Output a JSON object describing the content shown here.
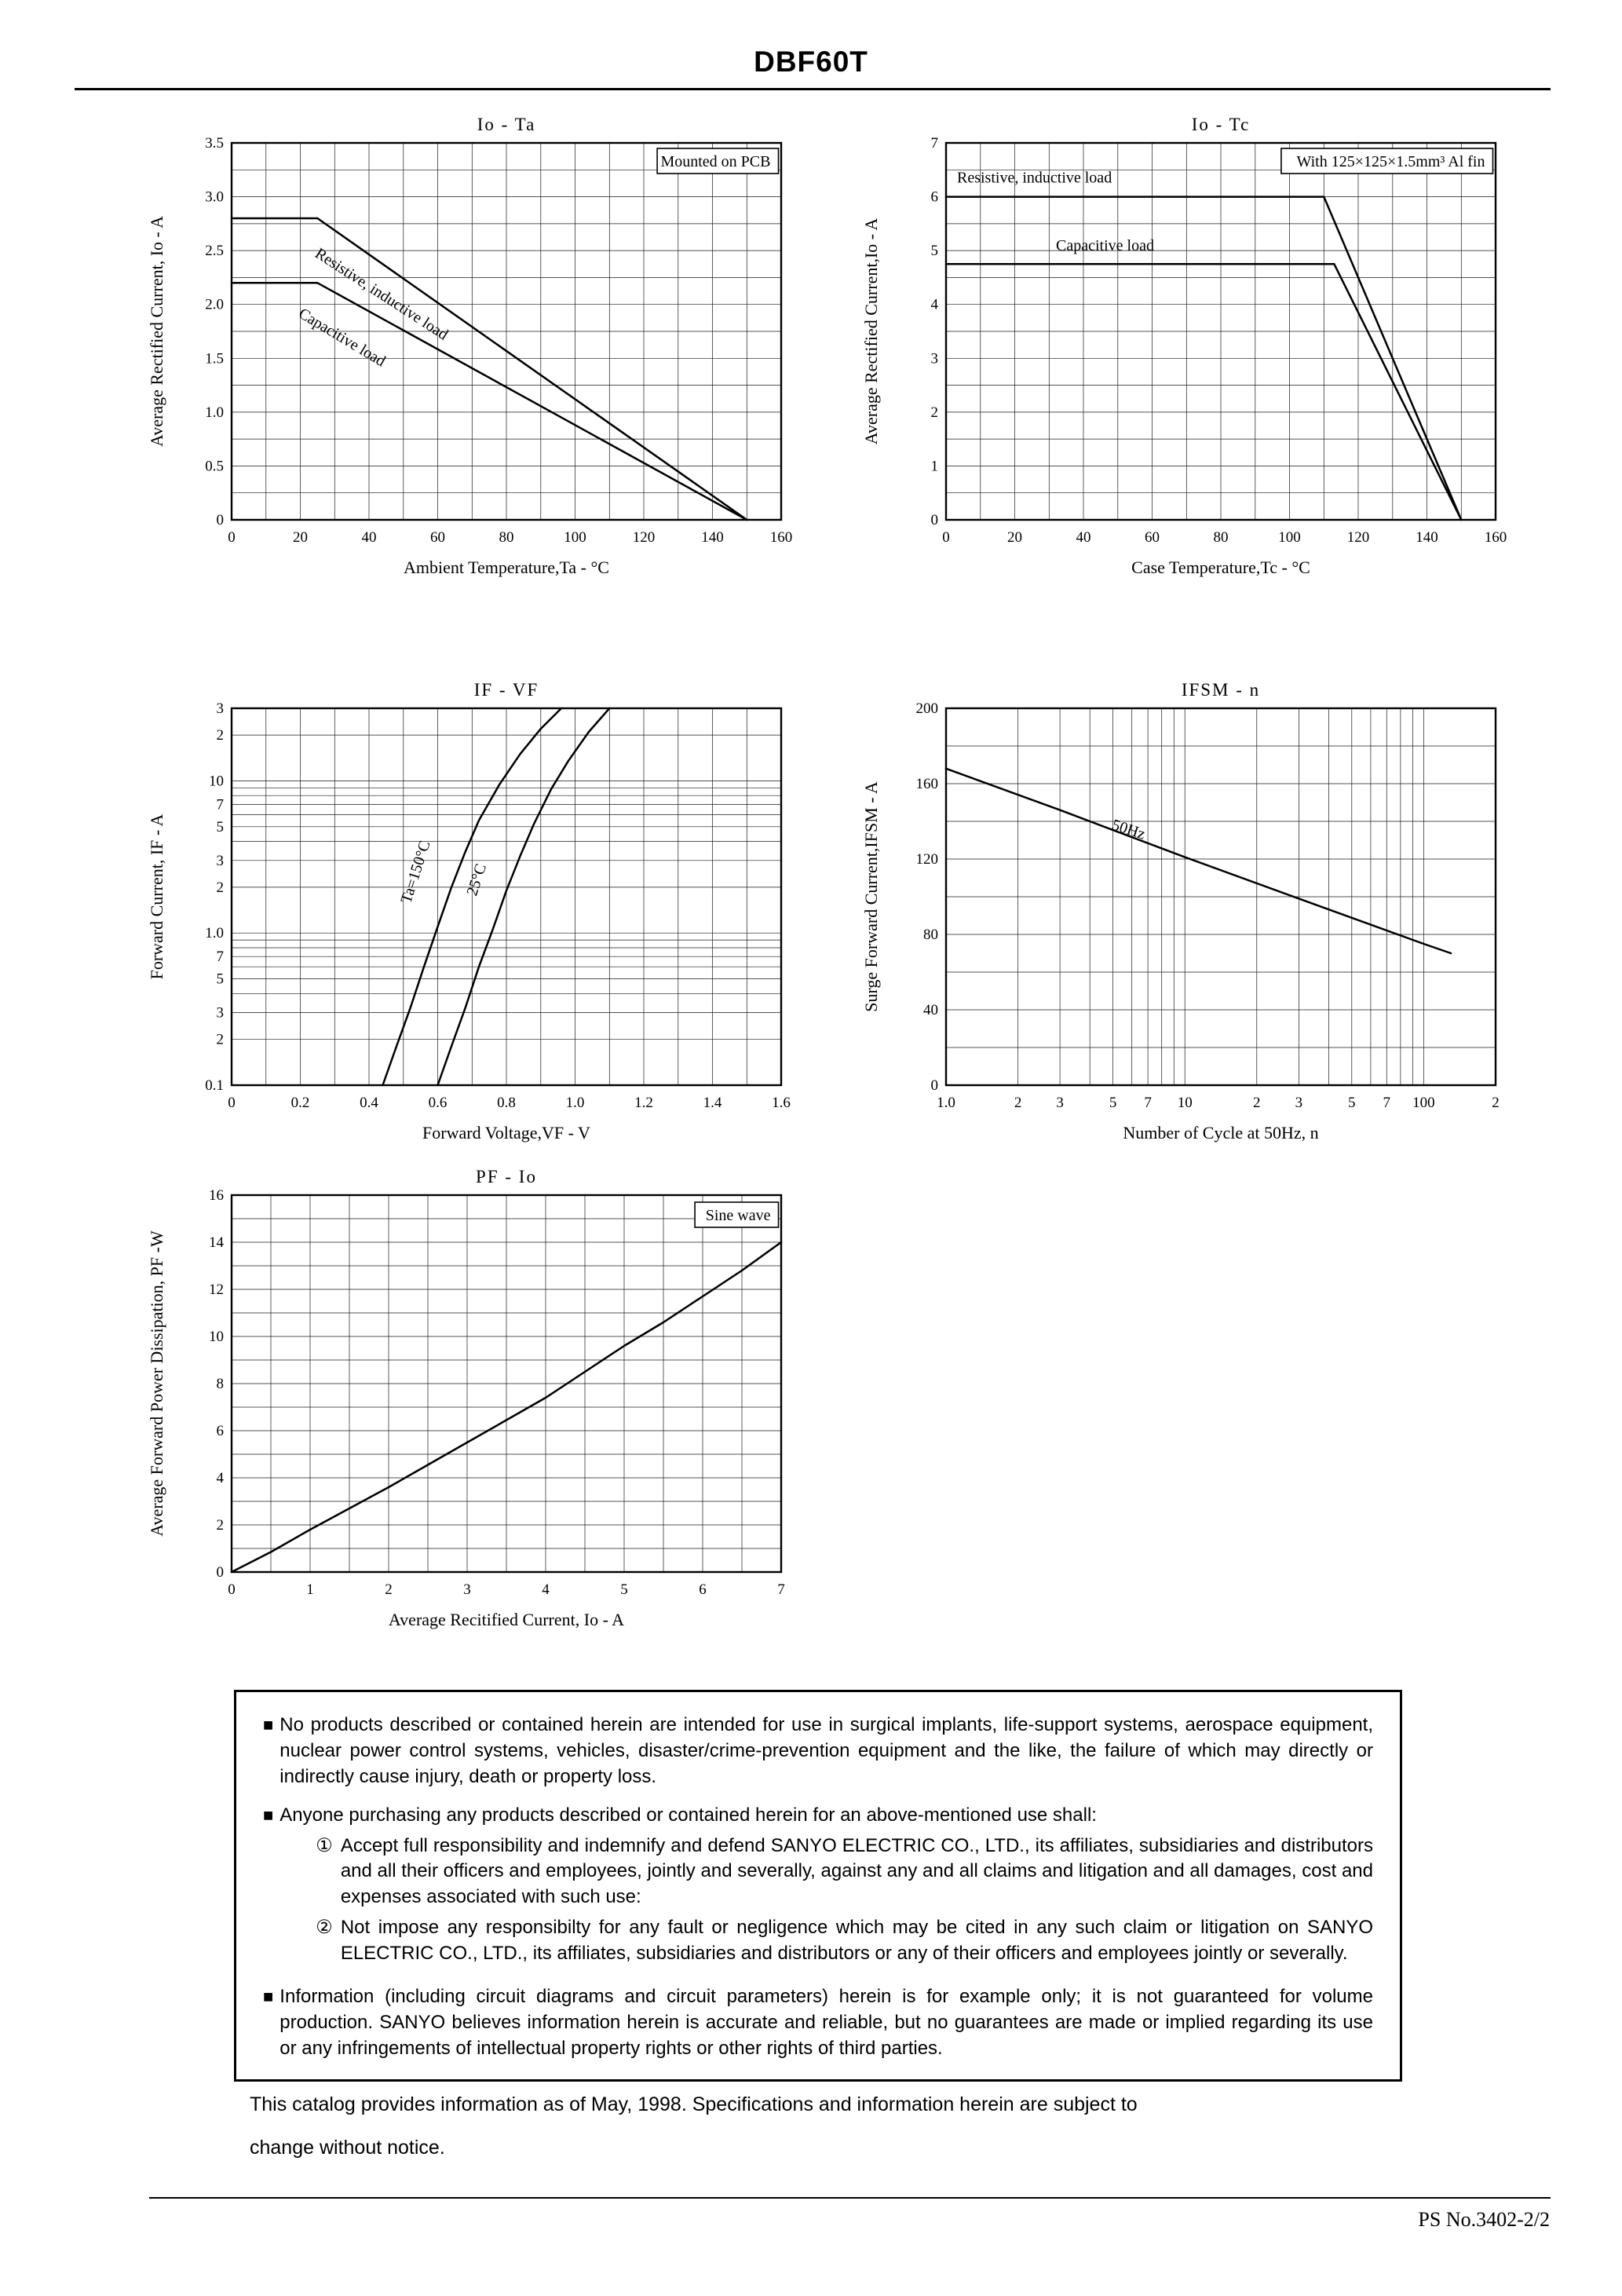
{
  "page": {
    "title": "DBF60T",
    "footer_line1": "This catalog provides information as of May, 1998. Specifications and information herein are subject to",
    "footer_line2": "change without notice.",
    "doc_number": "PS  No.3402-2/2"
  },
  "disclaimer": {
    "items": [
      {
        "bullet": "■",
        "text": "No products described or contained herein are intended for use in surgical implants, life-support systems, aerospace equipment, nuclear power control systems, vehicles, disaster/crime-prevention equipment and the like, the failure of which may directly or indirectly cause injury, death or property loss."
      },
      {
        "bullet": "■",
        "text": "Anyone purchasing any products described or contained herein for an above-mentioned use shall:",
        "subitems": [
          {
            "marker": "①",
            "text": "Accept full responsibility and indemnify and defend SANYO ELECTRIC CO., LTD., its affiliates, subsidiaries and distributors and all their officers and employees, jointly and severally, against any and all claims and litigation and all damages, cost and expenses associated with such use:"
          },
          {
            "marker": "②",
            "text": "Not impose any responsibilty for any fault or negligence which may be cited in any such claim or litigation on SANYO ELECTRIC CO., LTD., its affiliates, subsidiaries and distributors or any of their officers and employees jointly or severally."
          }
        ]
      },
      {
        "bullet": "■",
        "text": "Information (including circuit diagrams and circuit parameters) herein is for example only; it is not guaranteed for volume production. SANYO believes information herein is accurate and reliable, but no guarantees are made or implied regarding its use or any infringements of intellectual property rights or other rights of third parties."
      }
    ]
  },
  "chart_data": [
    {
      "id": "io-ta",
      "type": "line",
      "title": "Io - Ta",
      "xlabel": "Ambient Temperature,Ta  -  °C",
      "ylabel": "Average Rectified Current, Io  -  A",
      "x": {
        "scale": "linear",
        "min": 0,
        "max": 160,
        "step": 10,
        "ticks": [
          [
            0,
            "0"
          ],
          [
            20,
            "20"
          ],
          [
            40,
            "40"
          ],
          [
            60,
            "60"
          ],
          [
            80,
            "80"
          ],
          [
            100,
            "100"
          ],
          [
            120,
            "120"
          ],
          [
            140,
            "140"
          ],
          [
            160,
            "160"
          ]
        ]
      },
      "y": {
        "scale": "linear",
        "min": 0,
        "max": 3.5,
        "step": 0.25,
        "ticks": [
          [
            0,
            "0"
          ],
          [
            0.5,
            "0.5"
          ],
          [
            1,
            "1.0"
          ],
          [
            1.5,
            "1.5"
          ],
          [
            2,
            "2.0"
          ],
          [
            2.5,
            "2.5"
          ],
          [
            3,
            "3.0"
          ],
          [
            3.5,
            "3.5"
          ]
        ]
      },
      "series": [
        {
          "name": "Resistive, inductive load",
          "points": [
            [
              0,
              2.8
            ],
            [
              25,
              2.8
            ],
            [
              150,
              0
            ]
          ]
        },
        {
          "name": "Capacitive load",
          "points": [
            [
              0,
              2.2
            ],
            [
              25,
              2.2
            ],
            [
              150,
              0
            ]
          ]
        }
      ],
      "annotations": [
        {
          "text": "Mounted on PCB",
          "fx": 0.995,
          "fy": 0.048,
          "anchor": "end",
          "boxed": true
        },
        {
          "text": "Resistive, inductive load",
          "fx": 0.15,
          "fy": 0.3,
          "rotate": 33
        },
        {
          "text": "Capacitive load",
          "fx": 0.12,
          "fy": 0.46,
          "rotate": 31
        }
      ]
    },
    {
      "id": "io-tc",
      "type": "line",
      "title": "Io - Tc",
      "xlabel": "Case Temperature,Tc  -  °C",
      "ylabel": "Average Rectified Current,Io  -  A",
      "x": {
        "scale": "linear",
        "min": 0,
        "max": 160,
        "step": 10,
        "ticks": [
          [
            0,
            "0"
          ],
          [
            20,
            "20"
          ],
          [
            40,
            "40"
          ],
          [
            60,
            "60"
          ],
          [
            80,
            "80"
          ],
          [
            100,
            "100"
          ],
          [
            120,
            "120"
          ],
          [
            140,
            "140"
          ],
          [
            160,
            "160"
          ]
        ]
      },
      "y": {
        "scale": "linear",
        "min": 0,
        "max": 7,
        "step": 0.5,
        "ticks": [
          [
            0,
            "0"
          ],
          [
            1,
            "1"
          ],
          [
            2,
            "2"
          ],
          [
            3,
            "3"
          ],
          [
            4,
            "4"
          ],
          [
            5,
            "5"
          ],
          [
            6,
            "6"
          ],
          [
            7,
            "7"
          ]
        ]
      },
      "series": [
        {
          "name": "Resistive, inductive load",
          "points": [
            [
              0,
              6
            ],
            [
              110,
              6
            ],
            [
              150,
              0
            ]
          ]
        },
        {
          "name": "Capacitive load",
          "points": [
            [
              0,
              4.75
            ],
            [
              113,
              4.75
            ],
            [
              150,
              0
            ]
          ]
        }
      ],
      "annotations": [
        {
          "text": "With 125×125×1.5mm³ Al fin",
          "fx": 0.995,
          "fy": 0.048,
          "anchor": "end",
          "boxed": true
        },
        {
          "text": "Resistive, inductive load",
          "fx": 0.02,
          "fy": 0.105
        },
        {
          "text": "Capacitive load",
          "fx": 0.2,
          "fy": 0.285
        }
      ]
    },
    {
      "id": "if-vf",
      "type": "line",
      "title": "IF - VF",
      "xlabel": "Forward Voltage,VF  -  V",
      "ylabel": "Forward Current, IF  -  A",
      "x": {
        "scale": "linear",
        "min": 0,
        "max": 1.6,
        "step": 0.1,
        "ticks": [
          [
            0,
            "0"
          ],
          [
            0.2,
            "0.2"
          ],
          [
            0.4,
            "0.4"
          ],
          [
            0.6,
            "0.6"
          ],
          [
            0.8,
            "0.8"
          ],
          [
            1.0,
            "1.0"
          ],
          [
            1.2,
            "1.2"
          ],
          [
            1.4,
            "1.4"
          ],
          [
            1.6,
            "1.6"
          ]
        ]
      },
      "y": {
        "scale": "log",
        "min": 0.1,
        "max": 30,
        "grid": [
          0.1,
          0.2,
          0.3,
          0.4,
          0.5,
          0.6,
          0.7,
          0.8,
          0.9,
          1,
          2,
          3,
          4,
          5,
          6,
          7,
          8,
          9,
          10,
          20,
          30
        ],
        "ticks": [
          [
            0.1,
            "0.1"
          ],
          [
            0.2,
            "2"
          ],
          [
            0.3,
            "3"
          ],
          [
            0.5,
            "5"
          ],
          [
            0.7,
            "7"
          ],
          [
            1,
            "1.0"
          ],
          [
            2,
            "2"
          ],
          [
            3,
            "3"
          ],
          [
            5,
            "5"
          ],
          [
            7,
            "7"
          ],
          [
            10,
            "10"
          ],
          [
            20,
            "2"
          ],
          [
            30,
            "3"
          ]
        ]
      },
      "series": [
        {
          "name": "Ta=150°C",
          "points": [
            [
              0.44,
              0.1
            ],
            [
              0.48,
              0.18
            ],
            [
              0.52,
              0.32
            ],
            [
              0.56,
              0.6
            ],
            [
              0.6,
              1.1
            ],
            [
              0.64,
              2.0
            ],
            [
              0.68,
              3.4
            ],
            [
              0.72,
              5.5
            ],
            [
              0.78,
              9.5
            ],
            [
              0.84,
              15
            ],
            [
              0.9,
              22
            ],
            [
              0.96,
              30
            ]
          ]
        },
        {
          "name": "25°C",
          "points": [
            [
              0.6,
              0.1
            ],
            [
              0.64,
              0.18
            ],
            [
              0.68,
              0.32
            ],
            [
              0.72,
              0.6
            ],
            [
              0.76,
              1.05
            ],
            [
              0.8,
              1.9
            ],
            [
              0.84,
              3.2
            ],
            [
              0.88,
              5.2
            ],
            [
              0.93,
              8.8
            ],
            [
              0.98,
              13.5
            ],
            [
              1.04,
              21
            ],
            [
              1.1,
              30
            ]
          ]
        }
      ],
      "annotations": [
        {
          "text": "Ta=150°C",
          "fx": 0.325,
          "fy": 0.52,
          "rotate": -72
        },
        {
          "text": "25°C",
          "fx": 0.445,
          "fy": 0.5,
          "rotate": -72
        }
      ]
    },
    {
      "id": "ifsm-n",
      "type": "line",
      "title": "IFSM - n",
      "xlabel": "Number of Cycle at 50Hz, n",
      "ylabel": "Surge Forward Current,IFSM  -  A",
      "x": {
        "scale": "log",
        "min": 1,
        "max": 200,
        "grid": [
          1,
          2,
          3,
          4,
          5,
          6,
          7,
          8,
          9,
          10,
          20,
          30,
          40,
          50,
          60,
          70,
          80,
          90,
          100,
          200
        ],
        "ticks": [
          [
            1,
            "1.0"
          ],
          [
            2,
            "2"
          ],
          [
            3,
            "3"
          ],
          [
            5,
            "5"
          ],
          [
            7,
            "7"
          ],
          [
            10,
            "10"
          ],
          [
            20,
            "2"
          ],
          [
            30,
            "3"
          ],
          [
            50,
            "5"
          ],
          [
            70,
            "7"
          ],
          [
            100,
            "100"
          ],
          [
            200,
            "2"
          ]
        ]
      },
      "y": {
        "scale": "linear",
        "min": 0,
        "max": 200,
        "step": 20,
        "ticks": [
          [
            0,
            "0"
          ],
          [
            40,
            "40"
          ],
          [
            80,
            "80"
          ],
          [
            120,
            "120"
          ],
          [
            160,
            "160"
          ],
          [
            200,
            "200"
          ]
        ]
      },
      "series": [
        {
          "name": "50Hz",
          "points": [
            [
              1,
              168
            ],
            [
              3,
              146
            ],
            [
              10,
              121
            ],
            [
              30,
              99
            ],
            [
              100,
              75
            ],
            [
              130,
              70
            ]
          ]
        }
      ],
      "annotations": [
        {
          "text": "50Hz",
          "fx": 0.3,
          "fy": 0.32,
          "rotate": 18
        }
      ]
    },
    {
      "id": "pf-io",
      "type": "line",
      "title": "PF - Io",
      "xlabel": "Average Recitified Current, Io  -  A",
      "ylabel": "Average Forward Power Dissipation, PF  -W",
      "x": {
        "scale": "linear",
        "min": 0,
        "max": 7,
        "step": 0.5,
        "ticks": [
          [
            0,
            "0"
          ],
          [
            1,
            "1"
          ],
          [
            2,
            "2"
          ],
          [
            3,
            "3"
          ],
          [
            4,
            "4"
          ],
          [
            5,
            "5"
          ],
          [
            6,
            "6"
          ],
          [
            7,
            "7"
          ]
        ]
      },
      "y": {
        "scale": "linear",
        "min": 0,
        "max": 16,
        "step": 1,
        "ticks": [
          [
            0,
            "0"
          ],
          [
            2,
            "2"
          ],
          [
            4,
            "4"
          ],
          [
            6,
            "6"
          ],
          [
            8,
            "8"
          ],
          [
            10,
            "10"
          ],
          [
            12,
            "12"
          ],
          [
            14,
            "14"
          ],
          [
            16,
            "16"
          ]
        ]
      },
      "series": [
        {
          "name": "Sine wave",
          "points": [
            [
              0,
              0
            ],
            [
              0.5,
              0.85
            ],
            [
              1,
              1.8
            ],
            [
              1.5,
              2.7
            ],
            [
              2,
              3.6
            ],
            [
              2.5,
              4.55
            ],
            [
              3,
              5.5
            ],
            [
              3.5,
              6.45
            ],
            [
              4,
              7.4
            ],
            [
              4.5,
              8.5
            ],
            [
              5,
              9.6
            ],
            [
              5.5,
              10.6
            ],
            [
              6,
              11.7
            ],
            [
              6.5,
              12.8
            ],
            [
              7,
              14
            ]
          ]
        }
      ],
      "annotations": [
        {
          "text": "Sine wave",
          "fx": 0.995,
          "fy": 0.052,
          "anchor": "end",
          "boxed": true
        }
      ]
    }
  ]
}
